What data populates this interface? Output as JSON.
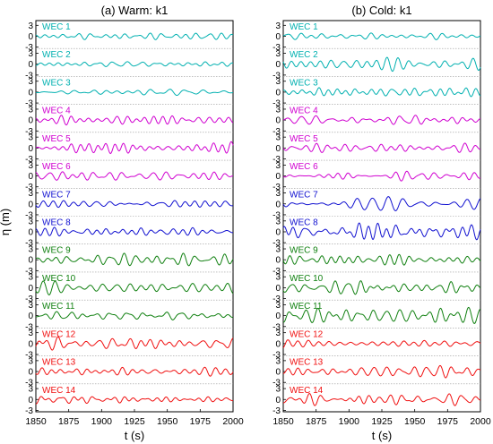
{
  "chart_data": [
    {
      "type": "line",
      "title": "(a) Warm: k1",
      "xlabel": "t (s)",
      "ylabel": "η (m)",
      "xlim": [
        1850,
        2000
      ],
      "xticks": [
        "1850",
        "1875",
        "1900",
        "1925",
        "1950",
        "1975",
        "2000"
      ],
      "yticks": [
        "3",
        "0",
        "-3"
      ],
      "ylim_per_panel": [
        -3,
        3
      ],
      "grid": true,
      "series": [
        {
          "name": "WEC 1",
          "color": "#00b0b0",
          "amp": 0.7
        },
        {
          "name": "WEC 2",
          "color": "#00b0b0",
          "amp": 0.6
        },
        {
          "name": "WEC 3",
          "color": "#00b0b0",
          "amp": 0.6
        },
        {
          "name": "WEC 4",
          "color": "#d000d0",
          "amp": 1.0
        },
        {
          "name": "WEC 5",
          "color": "#d000d0",
          "amp": 1.0
        },
        {
          "name": "WEC 6",
          "color": "#d000d0",
          "amp": 1.0
        },
        {
          "name": "WEC 7",
          "color": "#1010d0",
          "amp": 0.9
        },
        {
          "name": "WEC 8",
          "color": "#1010d0",
          "amp": 0.8
        },
        {
          "name": "WEC 9",
          "color": "#108010",
          "amp": 1.5
        },
        {
          "name": "WEC 10",
          "color": "#108010",
          "amp": 1.2
        },
        {
          "name": "WEC 11",
          "color": "#108010",
          "amp": 0.9
        },
        {
          "name": "WEC 12",
          "color": "#f01010",
          "amp": 1.3
        },
        {
          "name": "WEC 13",
          "color": "#f01010",
          "amp": 1.0
        },
        {
          "name": "WEC 14",
          "color": "#f01010",
          "amp": 0.8
        }
      ]
    },
    {
      "type": "line",
      "title": "(b) Cold: k1",
      "xlabel": "t (s)",
      "ylabel": "",
      "xlim": [
        1850,
        2000
      ],
      "xticks": [
        "1850",
        "1875",
        "1900",
        "1925",
        "1950",
        "1975",
        "2000"
      ],
      "yticks": [
        "3",
        "0",
        "-3"
      ],
      "ylim_per_panel": [
        -3,
        3
      ],
      "grid": true,
      "series": [
        {
          "name": "WEC 1",
          "color": "#00b0b0",
          "amp": 1.0
        },
        {
          "name": "WEC 2",
          "color": "#00b0b0",
          "amp": 1.3
        },
        {
          "name": "WEC 3",
          "color": "#00b0b0",
          "amp": 1.0
        },
        {
          "name": "WEC 4",
          "color": "#d000d0",
          "amp": 0.9
        },
        {
          "name": "WEC 5",
          "color": "#d000d0",
          "amp": 1.0
        },
        {
          "name": "WEC 6",
          "color": "#d000d0",
          "amp": 0.9
        },
        {
          "name": "WEC 7",
          "color": "#1010d0",
          "amp": 1.3
        },
        {
          "name": "WEC 8",
          "color": "#1010d0",
          "amp": 1.7
        },
        {
          "name": "WEC 9",
          "color": "#108010",
          "amp": 1.0
        },
        {
          "name": "WEC 10",
          "color": "#108010",
          "amp": 1.5
        },
        {
          "name": "WEC 11",
          "color": "#108010",
          "amp": 1.5
        },
        {
          "name": "WEC 12",
          "color": "#f01010",
          "amp": 0.8
        },
        {
          "name": "WEC 13",
          "color": "#f01010",
          "amp": 1.3
        },
        {
          "name": "WEC 14",
          "color": "#f01010",
          "amp": 1.2
        }
      ]
    }
  ]
}
